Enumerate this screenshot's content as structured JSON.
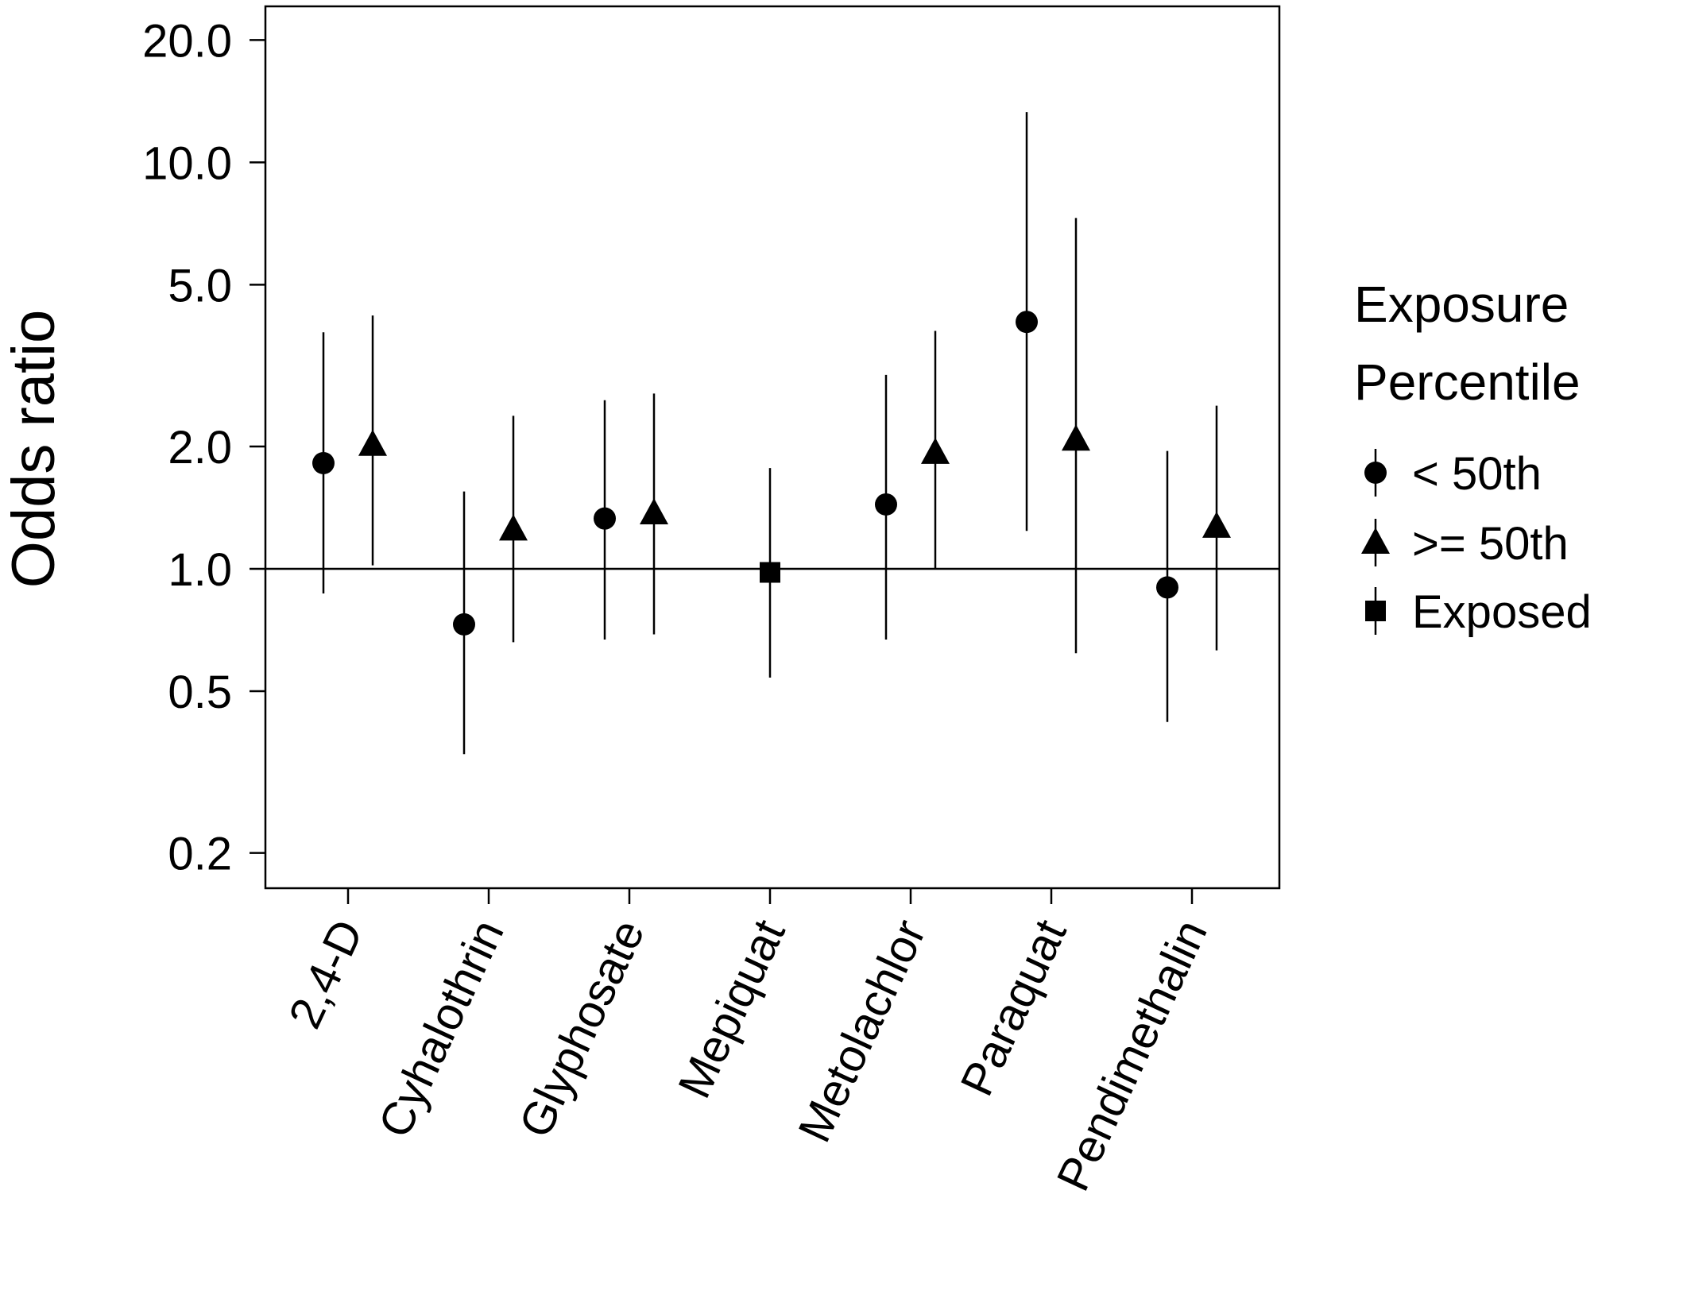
{
  "chart_data": {
    "type": "scatter",
    "title": "",
    "xlabel": "",
    "ylabel": "Odds ratio",
    "y_scale": "log",
    "ylim": [
      0.16,
      25.0
    ],
    "y_ticks": [
      0.2,
      0.5,
      1.0,
      2.0,
      5.0,
      10.0,
      20.0
    ],
    "y_tick_labels": [
      "0.2",
      "0.5",
      "1.0",
      "2.0",
      "5.0",
      "10.0",
      "20.0"
    ],
    "reference_line": 1.0,
    "grid": false,
    "categories": [
      "2,4-D",
      "Cyhalothrin",
      "Glyphosate",
      "Mepiquat",
      "Metolachlor",
      "Paraquat",
      "Pendimethalin"
    ],
    "legend": {
      "title_lines": [
        "Exposure",
        "Percentile"
      ],
      "placement": "right",
      "entries": [
        {
          "label": "< 50th",
          "marker": "circle"
        },
        {
          "label": ">= 50th",
          "marker": "triangle"
        },
        {
          "label": "Exposed",
          "marker": "square"
        }
      ]
    },
    "series": [
      {
        "name": "< 50th",
        "marker": "circle",
        "points": [
          {
            "category": "2,4-D",
            "or": 1.82,
            "lower": 0.87,
            "upper": 3.82
          },
          {
            "category": "Cyhalothrin",
            "or": 0.73,
            "lower": 0.35,
            "upper": 1.55
          },
          {
            "category": "Glyphosate",
            "or": 1.33,
            "lower": 0.67,
            "upper": 2.6
          },
          {
            "category": "Metolachlor",
            "or": 1.44,
            "lower": 0.67,
            "upper": 3.0
          },
          {
            "category": "Paraquat",
            "or": 4.05,
            "lower": 1.24,
            "upper": 13.3
          },
          {
            "category": "Pendimethalin",
            "or": 0.9,
            "lower": 0.42,
            "upper": 1.95
          }
        ]
      },
      {
        "name": ">= 50th",
        "marker": "triangle",
        "points": [
          {
            "category": "2,4-D",
            "or": 2.02,
            "lower": 1.02,
            "upper": 4.2
          },
          {
            "category": "Cyhalothrin",
            "or": 1.25,
            "lower": 0.66,
            "upper": 2.38
          },
          {
            "category": "Glyphosate",
            "or": 1.37,
            "lower": 0.69,
            "upper": 2.7
          },
          {
            "category": "Metolachlor",
            "or": 1.93,
            "lower": 1.0,
            "upper": 3.85
          },
          {
            "category": "Paraquat",
            "or": 2.08,
            "lower": 0.62,
            "upper": 7.3
          },
          {
            "category": "Pendimethalin",
            "or": 1.27,
            "lower": 0.63,
            "upper": 2.52
          }
        ]
      },
      {
        "name": "Exposed",
        "marker": "square",
        "points": [
          {
            "category": "Mepiquat",
            "or": 0.98,
            "lower": 0.54,
            "upper": 1.77
          }
        ]
      }
    ]
  }
}
